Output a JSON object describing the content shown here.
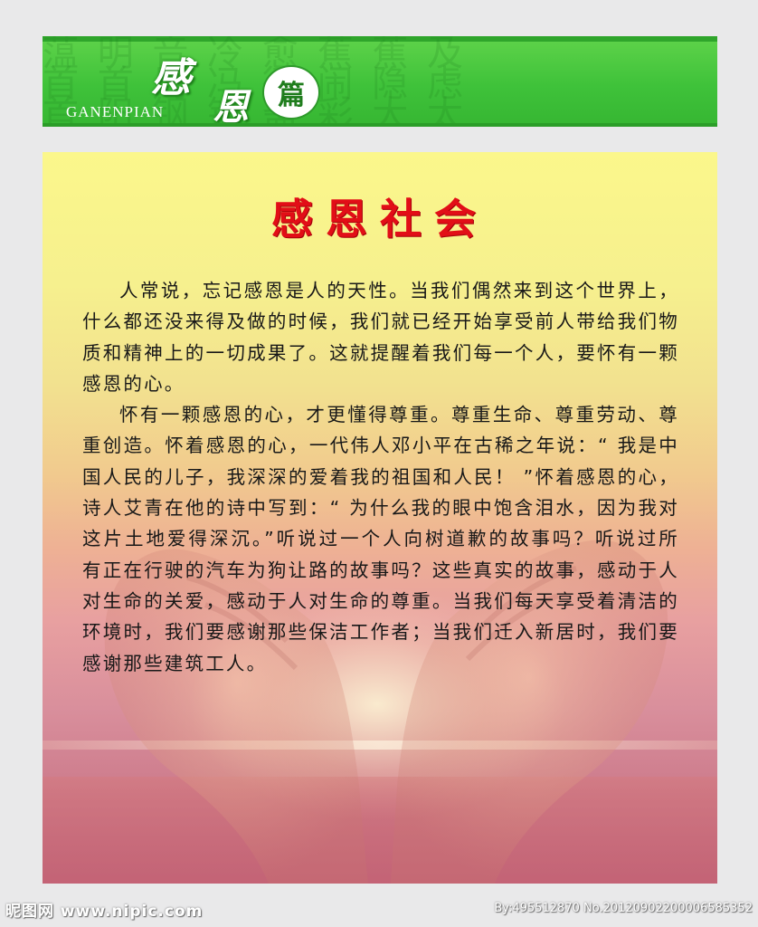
{
  "banner": {
    "title_char_1": "感",
    "title_char_2": "恩",
    "title_char_3": "篇",
    "pinyin": "GANENPIAN",
    "bg_text": "蕰 明 音 冷 愈 蕉 蕉 及\n首 首 周 冯 衙 闹 隐 虑\n首 阳 钢 镀 斋 彩 大 太"
  },
  "poster": {
    "title": "感恩社会",
    "paragraphs": [
      "人常说，忘记感恩是人的天性。当我们偶然来到这个世界上，什么都还没来得及做的时候，我们就已经开始享受前人带给我们物质和精神上的一切成果了。这就提醒着我们每一个人，要怀有一颗感恩的心。",
      "怀有一颗感恩的心，才更懂得尊重。尊重生命、尊重劳动、尊重创造。怀着感恩的心，一代伟人邓小平在古稀之年说：“ 我是中国人民的儿子，我深深的爱着我的祖国和人民！ ”怀着感恩的心，诗人艾青在他的诗中写到：“ 为什么我的眼中饱含泪水，因为我对这片土地爱得深沉。”听说过一个人向树道歉的故事吗？听说过所有正在行驶的汽车为狗让路的故事吗？这些真实的故事，感动于人对生命的关爱，感动于人对生命的尊重。当我们每天享受着清洁的环境时，我们要感谢那些保洁工作者；当我们迁入新居时，我们要感谢那些建筑工人。"
    ]
  },
  "watermark": {
    "left": "昵图网 www.nipic.com",
    "right": "By:495512870 No.20120902200006585352"
  }
}
